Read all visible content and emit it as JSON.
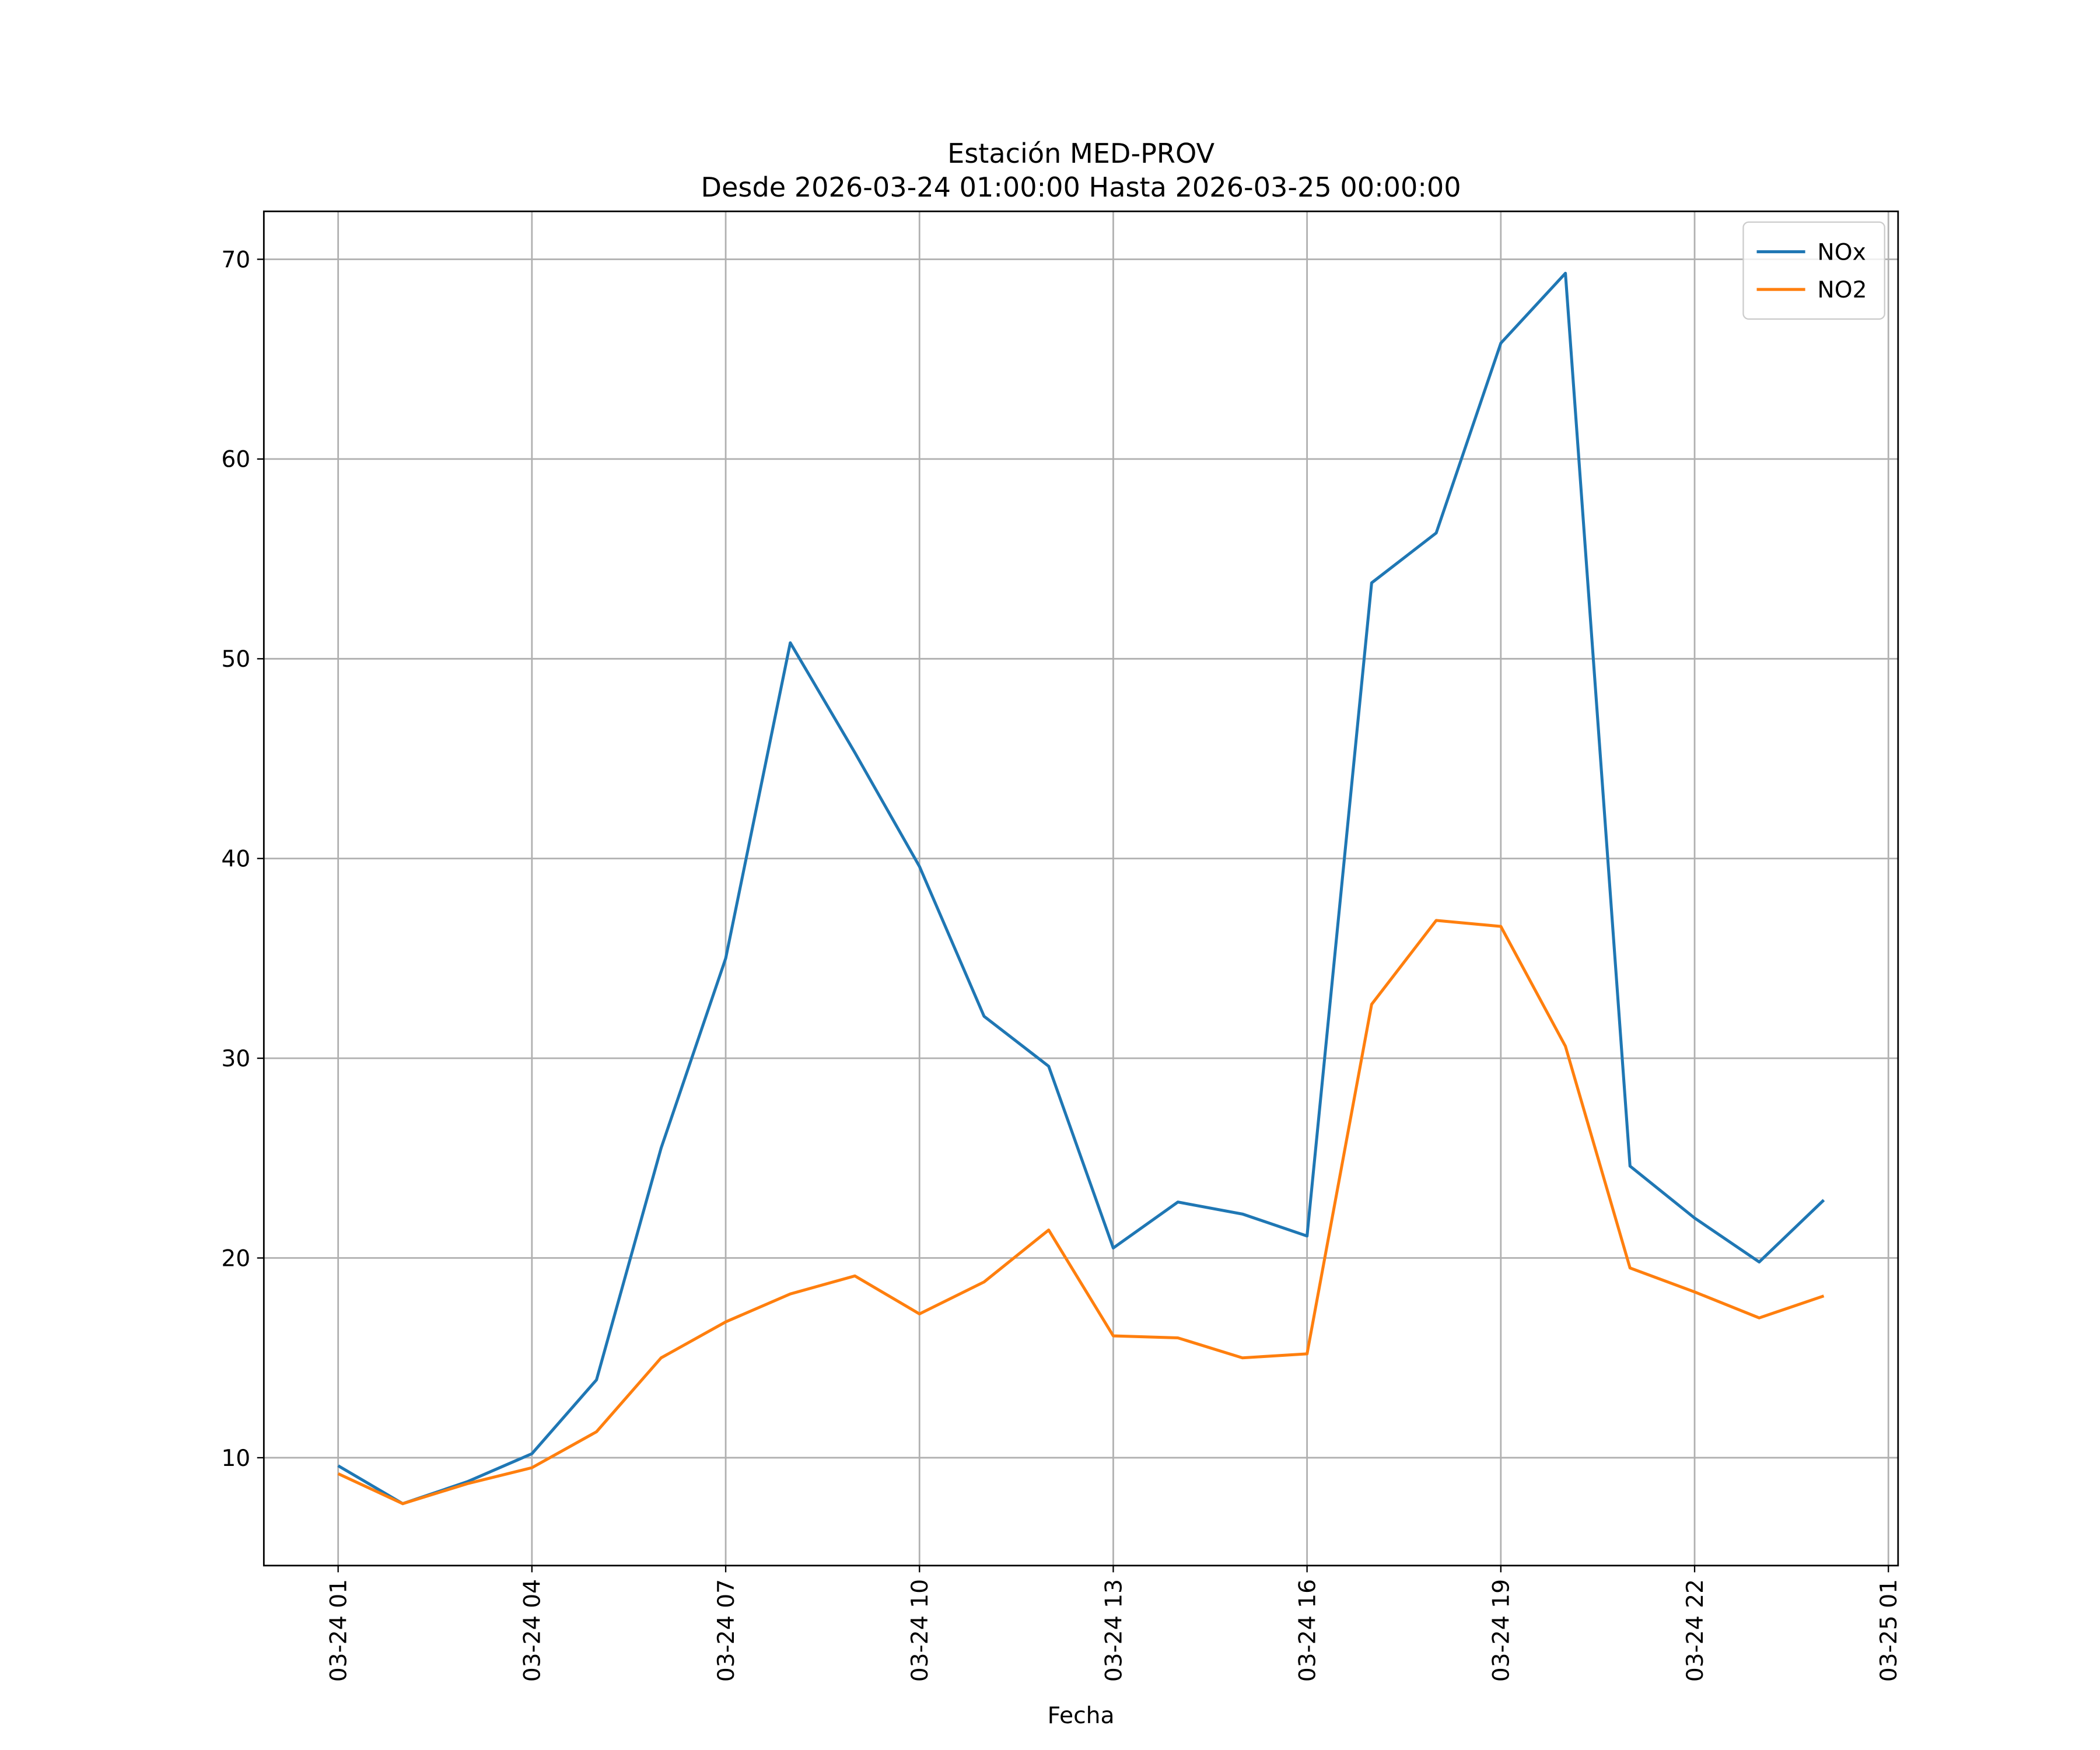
{
  "chart_data": {
    "type": "line",
    "title": "Estación MED-PROV",
    "subtitle": "Desde 2026-03-24 01:00:00 Hasta 2026-03-25 00:00:00",
    "x_label": "Fecha",
    "x": [
      "03-24 01",
      "03-24 02",
      "03-24 03",
      "03-24 04",
      "03-24 05",
      "03-24 06",
      "03-24 07",
      "03-24 08",
      "03-24 09",
      "03-24 10",
      "03-24 11",
      "03-24 12",
      "03-24 13",
      "03-24 14",
      "03-24 15",
      "03-24 16",
      "03-24 17",
      "03-24 18",
      "03-24 19",
      "03-24 20",
      "03-24 21",
      "03-24 22",
      "03-24 23",
      "03-25 00"
    ],
    "series": [
      {
        "name": "NOx",
        "color": "#1f77b4",
        "values": [
          9.6,
          7.7,
          8.8,
          10.2,
          13.9,
          25.5,
          35.0,
          50.8,
          45.3,
          39.6,
          32.1,
          29.6,
          20.5,
          22.8,
          22.2,
          21.1,
          53.8,
          56.3,
          65.8,
          69.3,
          24.6,
          22.0,
          19.8,
          22.9
        ]
      },
      {
        "name": "NO2",
        "color": "#ff7f0e",
        "values": [
          9.2,
          7.7,
          8.7,
          9.5,
          11.3,
          15.0,
          16.8,
          18.2,
          19.1,
          17.2,
          18.8,
          21.4,
          16.1,
          16.0,
          15.0,
          15.2,
          32.7,
          36.9,
          36.6,
          30.6,
          19.5,
          18.3,
          17.0,
          18.1
        ]
      }
    ],
    "xlim": [
      "03-23 23:51",
      "03-25 01:09"
    ],
    "xticks": [
      "03-24 01",
      "03-24 04",
      "03-24 07",
      "03-24 10",
      "03-24 13",
      "03-24 16",
      "03-24 19",
      "03-24 22",
      "03-25 01"
    ],
    "ylim": [
      4.6,
      72.4
    ],
    "yticks": [
      10,
      20,
      30,
      40,
      50,
      60,
      70
    ],
    "grid": true,
    "legend": "upper right"
  }
}
